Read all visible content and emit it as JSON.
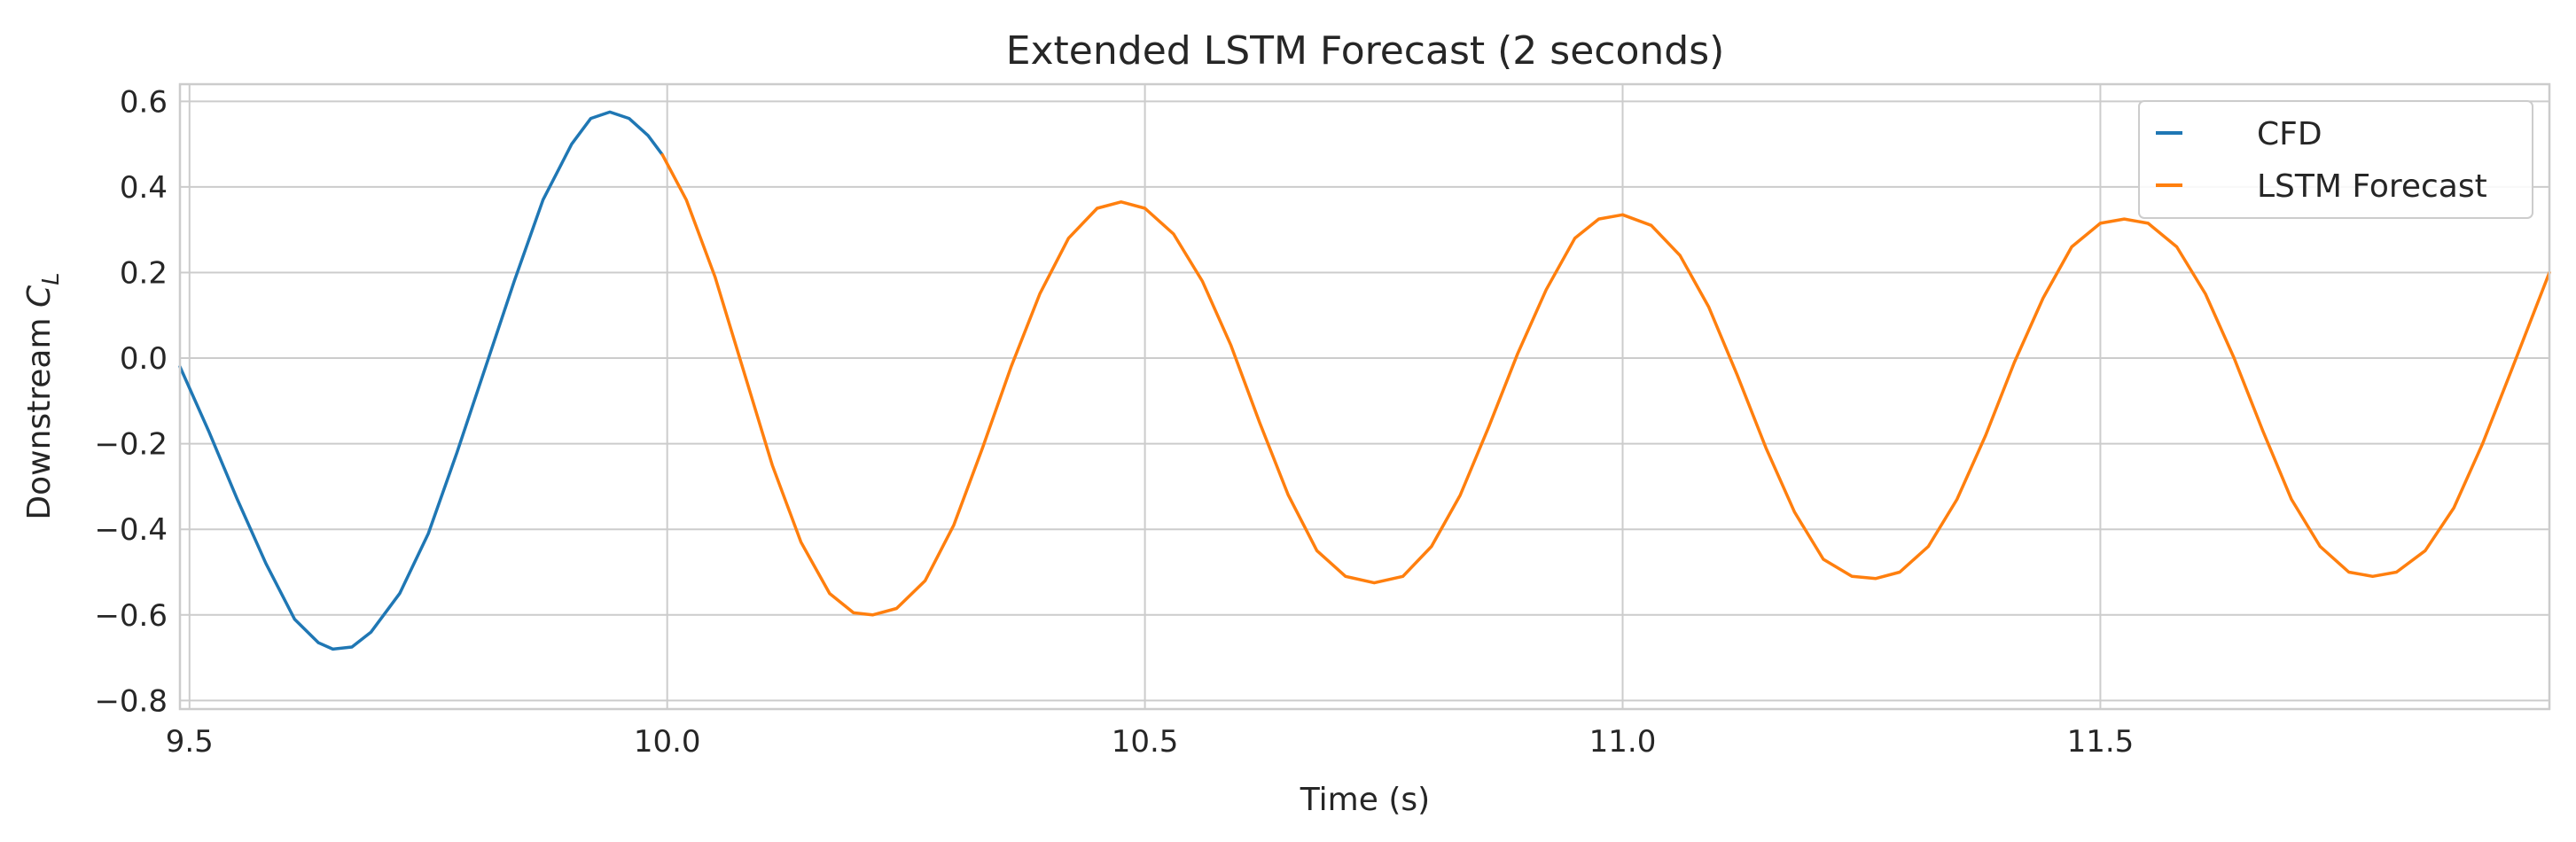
{
  "chart_data": {
    "type": "line",
    "title": "Extended LSTM Forecast (2 seconds)",
    "xlabel": "Time (s)",
    "ylabel_main": "Downstream ",
    "ylabel_math": "C",
    "ylabel_sub": "L",
    "xlim": [
      9.49,
      11.97
    ],
    "ylim": [
      -0.82,
      0.64
    ],
    "xticks": [
      {
        "value": 9.5,
        "label": "9.5"
      },
      {
        "value": 10.0,
        "label": "10.0"
      },
      {
        "value": 10.5,
        "label": "10.5"
      },
      {
        "value": 11.0,
        "label": "11.0"
      },
      {
        "value": 11.5,
        "label": "11.5"
      }
    ],
    "yticks": [
      {
        "value": 0.6,
        "label": "0.6"
      },
      {
        "value": 0.4,
        "label": "0.4"
      },
      {
        "value": 0.2,
        "label": "0.2"
      },
      {
        "value": 0.0,
        "label": "0.0"
      },
      {
        "value": -0.2,
        "label": "−0.2"
      },
      {
        "value": -0.4,
        "label": "−0.4"
      },
      {
        "value": -0.6,
        "label": "−0.6"
      },
      {
        "value": -0.8,
        "label": "−0.8"
      }
    ],
    "grid": true,
    "legend_position": "top-right",
    "series": [
      {
        "name": "CFD",
        "color": "#1f77b4",
        "points": [
          [
            9.49,
            -0.02
          ],
          [
            9.52,
            -0.17
          ],
          [
            9.55,
            -0.33
          ],
          [
            9.58,
            -0.48
          ],
          [
            9.61,
            -0.61
          ],
          [
            9.635,
            -0.665
          ],
          [
            9.65,
            -0.68
          ],
          [
            9.67,
            -0.675
          ],
          [
            9.69,
            -0.64
          ],
          [
            9.72,
            -0.55
          ],
          [
            9.75,
            -0.41
          ],
          [
            9.78,
            -0.22
          ],
          [
            9.81,
            -0.02
          ],
          [
            9.84,
            0.18
          ],
          [
            9.87,
            0.37
          ],
          [
            9.9,
            0.5
          ],
          [
            9.92,
            0.56
          ],
          [
            9.94,
            0.575
          ],
          [
            9.96,
            0.56
          ],
          [
            9.98,
            0.52
          ],
          [
            9.995,
            0.475
          ]
        ]
      },
      {
        "name": "LSTM Forecast",
        "color": "#ff7f0e",
        "points": [
          [
            9.995,
            0.475
          ],
          [
            10.02,
            0.37
          ],
          [
            10.05,
            0.19
          ],
          [
            10.08,
            -0.03
          ],
          [
            10.11,
            -0.25
          ],
          [
            10.14,
            -0.43
          ],
          [
            10.17,
            -0.55
          ],
          [
            10.195,
            -0.595
          ],
          [
            10.215,
            -0.6
          ],
          [
            10.24,
            -0.585
          ],
          [
            10.27,
            -0.52
          ],
          [
            10.3,
            -0.39
          ],
          [
            10.33,
            -0.21
          ],
          [
            10.36,
            -0.02
          ],
          [
            10.39,
            0.15
          ],
          [
            10.42,
            0.28
          ],
          [
            10.45,
            0.35
          ],
          [
            10.475,
            0.365
          ],
          [
            10.5,
            0.35
          ],
          [
            10.53,
            0.29
          ],
          [
            10.56,
            0.18
          ],
          [
            10.59,
            0.03
          ],
          [
            10.62,
            -0.15
          ],
          [
            10.65,
            -0.32
          ],
          [
            10.68,
            -0.45
          ],
          [
            10.71,
            -0.51
          ],
          [
            10.74,
            -0.525
          ],
          [
            10.77,
            -0.51
          ],
          [
            10.8,
            -0.44
          ],
          [
            10.83,
            -0.32
          ],
          [
            10.86,
            -0.16
          ],
          [
            10.89,
            0.01
          ],
          [
            10.92,
            0.16
          ],
          [
            10.95,
            0.28
          ],
          [
            10.975,
            0.325
          ],
          [
            11.0,
            0.335
          ],
          [
            11.03,
            0.31
          ],
          [
            11.06,
            0.24
          ],
          [
            11.09,
            0.12
          ],
          [
            11.12,
            -0.04
          ],
          [
            11.15,
            -0.21
          ],
          [
            11.18,
            -0.36
          ],
          [
            11.21,
            -0.47
          ],
          [
            11.24,
            -0.51
          ],
          [
            11.265,
            -0.515
          ],
          [
            11.29,
            -0.5
          ],
          [
            11.32,
            -0.44
          ],
          [
            11.35,
            -0.33
          ],
          [
            11.38,
            -0.18
          ],
          [
            11.41,
            -0.01
          ],
          [
            11.44,
            0.14
          ],
          [
            11.47,
            0.26
          ],
          [
            11.5,
            0.315
          ],
          [
            11.525,
            0.325
          ],
          [
            11.55,
            0.315
          ],
          [
            11.58,
            0.26
          ],
          [
            11.61,
            0.15
          ],
          [
            11.64,
            0.0
          ],
          [
            11.67,
            -0.17
          ],
          [
            11.7,
            -0.33
          ],
          [
            11.73,
            -0.44
          ],
          [
            11.76,
            -0.5
          ],
          [
            11.785,
            -0.51
          ],
          [
            11.81,
            -0.5
          ],
          [
            11.84,
            -0.45
          ],
          [
            11.87,
            -0.35
          ],
          [
            11.9,
            -0.2
          ],
          [
            11.93,
            -0.03
          ],
          [
            11.97,
            0.2
          ]
        ]
      }
    ]
  }
}
